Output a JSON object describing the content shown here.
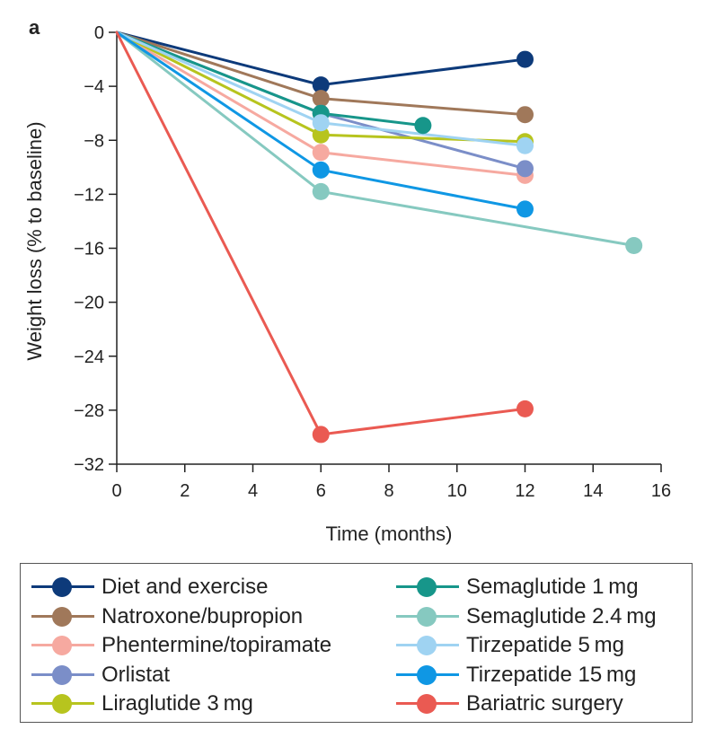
{
  "panel_label": "a",
  "chart_data": {
    "type": "line",
    "title": "",
    "xlabel": "Time (months)",
    "ylabel": "Weight loss (% to baseline)",
    "xlim": [
      0,
      16
    ],
    "ylim": [
      -32,
      0
    ],
    "xticks": [
      0,
      2,
      4,
      6,
      8,
      10,
      12,
      14,
      16
    ],
    "yticks": [
      0,
      -4,
      -8,
      -12,
      -16,
      -20,
      -24,
      -28,
      -32
    ],
    "xtick_labels": [
      "0",
      "2",
      "4",
      "6",
      "8",
      "10",
      "12",
      "14",
      "16"
    ],
    "ytick_labels": [
      "0",
      "−4",
      "−8",
      "−12",
      "−16",
      "−20",
      "−24",
      "−28",
      "−32"
    ],
    "grid": false,
    "legend_position": "bottom",
    "series": [
      {
        "name": "Diet and exercise",
        "color": "#0d3a7a",
        "x": [
          0,
          6,
          12
        ],
        "y": [
          0,
          -3.9,
          -2.0
        ]
      },
      {
        "name": "Natroxone/bupropion",
        "color": "#a0785a",
        "x": [
          0,
          6,
          12
        ],
        "y": [
          0,
          -4.9,
          -6.1
        ]
      },
      {
        "name": "Phentermine/topiramate",
        "color": "#f6a9a0",
        "x": [
          0,
          6,
          12
        ],
        "y": [
          0,
          -8.9,
          -10.6
        ]
      },
      {
        "name": "Orlistat",
        "color": "#7b8ec8",
        "x": [
          0,
          6,
          12
        ],
        "y": [
          0,
          -6.0,
          -10.1
        ]
      },
      {
        "name": "Liraglutide 3 mg",
        "color": "#b7c41e",
        "x": [
          0,
          6,
          12
        ],
        "y": [
          0,
          -7.6,
          -8.1
        ]
      },
      {
        "name": "Semaglutide 1 mg",
        "color": "#17968a",
        "x": [
          0,
          6,
          9
        ],
        "y": [
          0,
          -6.0,
          -6.9
        ]
      },
      {
        "name": "Semaglutide 2.4 mg",
        "color": "#86c9c0",
        "x": [
          0,
          6,
          15.2
        ],
        "y": [
          0,
          -11.8,
          -15.8
        ]
      },
      {
        "name": "Tirzepatide 5 mg",
        "color": "#9fd3f2",
        "x": [
          0,
          6,
          12
        ],
        "y": [
          0,
          -6.7,
          -8.4
        ]
      },
      {
        "name": "Tirzepatide 15 mg",
        "color": "#0f97e4",
        "x": [
          0,
          6,
          12
        ],
        "y": [
          0,
          -10.2,
          -13.1
        ]
      },
      {
        "name": "Bariatric surgery",
        "color": "#ea5a52",
        "x": [
          0,
          6,
          12
        ],
        "y": [
          0,
          -29.8,
          -27.9
        ]
      }
    ]
  }
}
